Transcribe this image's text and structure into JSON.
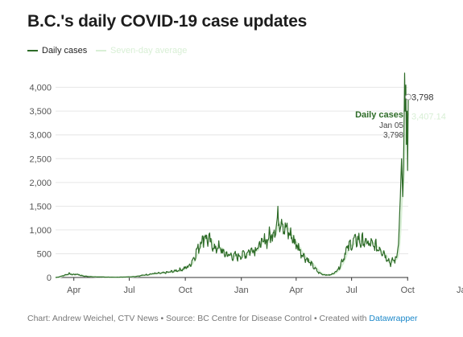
{
  "title": "B.C.'s daily COVID-19 case updates",
  "footer": {
    "text": "Chart: Andrew Weichel, CTV News • Source: BC Centre for Disease Control • Created with ",
    "link": "Datawrapper"
  },
  "colors": {
    "daily": "#2d6b27",
    "average": "#d8efd5",
    "grid": "#e6e6e6",
    "axis": "#333333",
    "text": "#555555",
    "tooltip_title": "#2d6b27",
    "link": "#1a87c9"
  },
  "chart_data": {
    "type": "line",
    "title": "B.C.'s daily COVID-19 case updates",
    "xlabel": "",
    "ylabel": "",
    "ylim": [
      0,
      4400
    ],
    "yticks": [
      0,
      500,
      1000,
      1500,
      2000,
      2500,
      3000,
      3500,
      4000
    ],
    "ytick_labels": [
      "0",
      "500",
      "1,000",
      "1,500",
      "2,000",
      "2,500",
      "3,000",
      "3,500",
      "4,000"
    ],
    "xticks": [
      {
        "label": "Apr",
        "day": 30
      },
      {
        "label": "Jul",
        "day": 121
      },
      {
        "label": "Oct",
        "day": 213
      },
      {
        "label": "Jan",
        "day": 305
      },
      {
        "label": "Apr",
        "day": 395
      },
      {
        "label": "Jul",
        "day": 486
      },
      {
        "label": "Oct",
        "day": 578
      },
      {
        "label": "Jan",
        "day": 670
      }
    ],
    "grid": true,
    "legend_position": "top-left",
    "series": [
      {
        "name": "Daily cases",
        "role": "daily",
        "anchors": [
          [
            0,
            0
          ],
          [
            5,
            10
          ],
          [
            15,
            50
          ],
          [
            22,
            80
          ],
          [
            28,
            60
          ],
          [
            35,
            70
          ],
          [
            45,
            30
          ],
          [
            60,
            15
          ],
          [
            80,
            8
          ],
          [
            100,
            5
          ],
          [
            115,
            10
          ],
          [
            130,
            20
          ],
          [
            145,
            50
          ],
          [
            160,
            80
          ],
          [
            175,
            90
          ],
          [
            190,
            120
          ],
          [
            200,
            150
          ],
          [
            210,
            180
          ],
          [
            220,
            250
          ],
          [
            230,
            500
          ],
          [
            240,
            800
          ],
          [
            245,
            880
          ],
          [
            250,
            800
          ],
          [
            256,
            700
          ],
          [
            262,
            600
          ],
          [
            268,
            640
          ],
          [
            275,
            520
          ],
          [
            282,
            480
          ],
          [
            290,
            450
          ],
          [
            298,
            440
          ],
          [
            305,
            470
          ],
          [
            312,
            500
          ],
          [
            320,
            580
          ],
          [
            330,
            620
          ],
          [
            345,
            780
          ],
          [
            355,
            900
          ],
          [
            360,
            1050
          ],
          [
            365,
            1200
          ],
          [
            369,
            1280
          ],
          [
            373,
            1150
          ],
          [
            378,
            1000
          ],
          [
            385,
            900
          ],
          [
            395,
            700
          ],
          [
            405,
            500
          ],
          [
            415,
            350
          ],
          [
            425,
            200
          ],
          [
            432,
            100
          ],
          [
            440,
            60
          ],
          [
            450,
            50
          ],
          [
            458,
            100
          ],
          [
            465,
            200
          ],
          [
            472,
            400
          ],
          [
            478,
            600
          ],
          [
            485,
            700
          ],
          [
            495,
            800
          ],
          [
            505,
            750
          ],
          [
            515,
            700
          ],
          [
            525,
            650
          ],
          [
            535,
            600
          ],
          [
            540,
            500
          ],
          [
            545,
            400
          ],
          [
            550,
            300
          ],
          [
            555,
            360
          ],
          [
            560,
            420
          ],
          [
            563,
            700
          ],
          [
            566,
            1700
          ],
          [
            568,
            2500
          ],
          [
            570,
            1700
          ],
          [
            571,
            2200
          ],
          [
            572,
            3000
          ],
          [
            573,
            4300
          ],
          [
            574,
            3500
          ],
          [
            575,
            4050
          ],
          [
            576,
            2800
          ],
          [
            577,
            3500
          ],
          [
            578,
            2250
          ],
          [
            579,
            3798
          ]
        ]
      },
      {
        "name": "Seven-day average",
        "role": "average",
        "anchors": [
          [
            0,
            0
          ],
          [
            579,
            3407.14
          ]
        ]
      }
    ],
    "last_point": {
      "day": 579,
      "value": 3798,
      "label": "3,798"
    },
    "average_last_label": "3,407.14",
    "tooltip": {
      "title": "Daily cases",
      "date": "Jan 05",
      "value": "3,798"
    }
  }
}
